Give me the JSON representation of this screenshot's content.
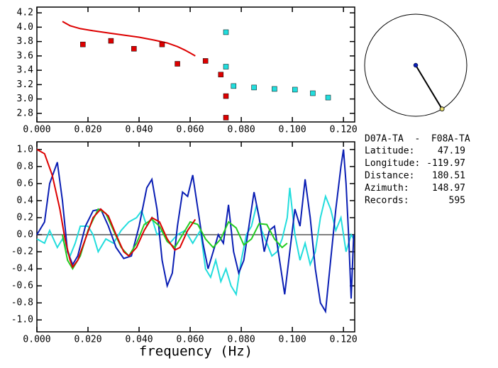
{
  "chart_data": [
    {
      "type": "scatter",
      "xlim": [
        0,
        0.1244
      ],
      "ylim": [
        2.68,
        4.28
      ],
      "xticks": [
        {
          "value": 0,
          "label": "0.000"
        },
        {
          "value": 0.02,
          "label": "0.020"
        },
        {
          "value": 0.04,
          "label": "0.040"
        },
        {
          "value": 0.06,
          "label": "0.060"
        },
        {
          "value": 0.08,
          "label": "0.080"
        },
        {
          "value": 0.1,
          "label": "0.100"
        },
        {
          "value": 0.12,
          "label": "0.120"
        }
      ],
      "yticks": [
        {
          "value": 2.8,
          "label": "2.8"
        },
        {
          "value": 3,
          "label": "3.0"
        },
        {
          "value": 3.2,
          "label": "3.2"
        },
        {
          "value": 3.4,
          "label": "3.4"
        },
        {
          "value": 3.6,
          "label": "3.6"
        },
        {
          "value": 3.8,
          "label": "3.8"
        },
        {
          "value": 4,
          "label": "4.0"
        },
        {
          "value": 4.2,
          "label": "4.2"
        }
      ],
      "series": [
        {
          "type": "line",
          "color": "#dd0000",
          "x": [
            0.01,
            0.013,
            0.017,
            0.022,
            0.028,
            0.034,
            0.04,
            0.046,
            0.051,
            0.055,
            0.058,
            0.06,
            0.062
          ],
          "values": [
            4.08,
            4.02,
            3.98,
            3.95,
            3.92,
            3.89,
            3.86,
            3.82,
            3.78,
            3.73,
            3.68,
            3.64,
            3.6
          ]
        },
        {
          "type": "scatter",
          "color": "#dd0000",
          "x": [
            0.018,
            0.029,
            0.038,
            0.049,
            0.055,
            0.066,
            0.072,
            0.074,
            0.074
          ],
          "values": [
            3.76,
            3.81,
            3.7,
            3.76,
            3.49,
            3.53,
            3.34,
            3.04,
            2.74
          ]
        },
        {
          "type": "scatter",
          "color": "#22dddd",
          "x": [
            0.074,
            0.074,
            0.077,
            0.085,
            0.093,
            0.101,
            0.108,
            0.114
          ],
          "values": [
            3.93,
            3.45,
            3.18,
            3.16,
            3.14,
            3.13,
            3.08,
            3.02
          ]
        }
      ]
    },
    {
      "type": "line",
      "xlabel": "frequency (Hz)",
      "xlim": [
        0,
        0.1244
      ],
      "ylim": [
        -1.14,
        1.09
      ],
      "hline": 0,
      "xticks": [
        {
          "value": 0,
          "label": "0.000"
        },
        {
          "value": 0.02,
          "label": "0.020"
        },
        {
          "value": 0.04,
          "label": "0.040"
        },
        {
          "value": 0.06,
          "label": "0.060"
        },
        {
          "value": 0.08,
          "label": "0.080"
        },
        {
          "value": 0.1,
          "label": "0.100"
        },
        {
          "value": 0.12,
          "label": "0.120"
        }
      ],
      "yticks": [
        {
          "value": -1,
          "label": "-1.0"
        },
        {
          "value": -0.8,
          "label": "-0.8"
        },
        {
          "value": -0.6,
          "label": "-0.6"
        },
        {
          "value": -0.4,
          "label": "-0.4"
        },
        {
          "value": -0.2,
          "label": "-0.2"
        },
        {
          "value": 0,
          "label": "0.0"
        },
        {
          "value": 0.2,
          "label": "0.2"
        },
        {
          "value": 0.4,
          "label": "0.4"
        },
        {
          "value": 0.6,
          "label": "0.6"
        },
        {
          "value": 0.8,
          "label": "0.8"
        },
        {
          "value": 1,
          "label": "1.0"
        }
      ],
      "series": [
        {
          "type": "line",
          "color": "#22dddd",
          "x": [
            0,
            0.003,
            0.005,
            0.008,
            0.01,
            0.013,
            0.015,
            0.017,
            0.02,
            0.022,
            0.024,
            0.027,
            0.03,
            0.033,
            0.036,
            0.039,
            0.041,
            0.043,
            0.045,
            0.047,
            0.049,
            0.052,
            0.055,
            0.058,
            0.061,
            0.064,
            0.066,
            0.068,
            0.07,
            0.072,
            0.074,
            0.076,
            0.078,
            0.08,
            0.082,
            0.084,
            0.086,
            0.088,
            0.09,
            0.092,
            0.094,
            0.096,
            0.098,
            0.099,
            0.101,
            0.103,
            0.105,
            0.107,
            0.109,
            0.111,
            0.113,
            0.115,
            0.117,
            0.119,
            0.121,
            0.123,
            0.124
          ],
          "values": [
            -0.05,
            -0.1,
            0.05,
            -0.15,
            -0.05,
            -0.25,
            -0.1,
            0.1,
            0.1,
            0.0,
            -0.2,
            -0.05,
            -0.1,
            0.05,
            0.15,
            0.2,
            0.28,
            0.1,
            0.2,
            0.0,
            0.05,
            -0.1,
            0.0,
            0.05,
            -0.1,
            0.05,
            -0.4,
            -0.5,
            -0.3,
            -0.55,
            -0.4,
            -0.6,
            -0.7,
            -0.3,
            0.0,
            0.1,
            0.35,
            0.05,
            -0.1,
            -0.25,
            -0.2,
            -0.05,
            0.2,
            0.55,
            0.0,
            -0.3,
            -0.1,
            -0.35,
            -0.2,
            0.2,
            0.45,
            0.3,
            0.05,
            0.2,
            -0.2,
            0.0,
            -0.05
          ]
        },
        {
          "type": "line",
          "color": "#0a1eb4",
          "x": [
            0,
            0.003,
            0.005,
            0.008,
            0.01,
            0.012,
            0.014,
            0.016,
            0.019,
            0.022,
            0.025,
            0.028,
            0.031,
            0.034,
            0.037,
            0.04,
            0.043,
            0.045,
            0.047,
            0.049,
            0.051,
            0.053,
            0.055,
            0.057,
            0.059,
            0.061,
            0.063,
            0.065,
            0.067,
            0.069,
            0.071,
            0.073,
            0.075,
            0.077,
            0.079,
            0.081,
            0.083,
            0.085,
            0.087,
            0.089,
            0.091,
            0.093,
            0.095,
            0.097,
            0.099,
            0.101,
            0.103,
            0.105,
            0.107,
            0.109,
            0.111,
            0.113,
            0.115,
            0.117,
            0.119,
            0.12,
            0.121,
            0.122,
            0.123,
            0.124
          ],
          "values": [
            0.0,
            0.15,
            0.6,
            0.85,
            0.4,
            -0.2,
            -0.35,
            -0.25,
            0.1,
            0.28,
            0.3,
            0.1,
            -0.15,
            -0.28,
            -0.25,
            0.1,
            0.55,
            0.65,
            0.3,
            -0.3,
            -0.6,
            -0.45,
            0.1,
            0.5,
            0.45,
            0.7,
            0.3,
            -0.1,
            -0.4,
            -0.2,
            0.0,
            -0.1,
            0.35,
            -0.2,
            -0.45,
            -0.3,
            0.1,
            0.5,
            0.2,
            -0.2,
            0.05,
            0.1,
            -0.3,
            -0.7,
            -0.2,
            0.3,
            0.1,
            0.65,
            0.2,
            -0.4,
            -0.8,
            -0.9,
            -0.3,
            0.3,
            0.8,
            1.0,
            0.6,
            0.0,
            -0.75,
            0.0
          ]
        },
        {
          "type": "line",
          "color": "#22cc22",
          "x": [
            0.01,
            0.012,
            0.014,
            0.017,
            0.02,
            0.024,
            0.027,
            0.03,
            0.033,
            0.036,
            0.039,
            0.042,
            0.045,
            0.048,
            0.051,
            0.054,
            0.057,
            0.06,
            0.063,
            0.066,
            0.069,
            0.072,
            0.075,
            0.078,
            0.081,
            0.084,
            0.087,
            0.09,
            0.093,
            0.096,
            0.098
          ],
          "values": [
            0.0,
            -0.3,
            -0.4,
            -0.25,
            0.05,
            0.3,
            0.25,
            0.05,
            -0.15,
            -0.25,
            -0.1,
            0.12,
            0.18,
            0.1,
            -0.08,
            -0.15,
            0.0,
            0.15,
            0.12,
            -0.05,
            -0.15,
            -0.05,
            0.15,
            0.08,
            -0.12,
            -0.05,
            0.13,
            0.12,
            -0.05,
            -0.15,
            -0.1
          ]
        },
        {
          "type": "line",
          "color": "#dd0000",
          "x": [
            0,
            0.003,
            0.006,
            0.009,
            0.011,
            0.013,
            0.014,
            0.016,
            0.019,
            0.022,
            0.025,
            0.028,
            0.031,
            0.034,
            0.036,
            0.039,
            0.042,
            0.045,
            0.048,
            0.051,
            0.054,
            0.056,
            0.059,
            0.062
          ],
          "values": [
            1.0,
            0.95,
            0.7,
            0.3,
            -0.05,
            -0.3,
            -0.38,
            -0.3,
            -0.05,
            0.2,
            0.3,
            0.22,
            0.0,
            -0.2,
            -0.25,
            -0.15,
            0.05,
            0.2,
            0.15,
            -0.05,
            -0.18,
            -0.15,
            0.05,
            0.18
          ]
        }
      ]
    }
  ],
  "info": {
    "title": "D07A-TA  -  F08A-TA",
    "rows": [
      {
        "label": "Latitude:",
        "value": 47.19
      },
      {
        "label": "Longitude:",
        "value": -119.97
      },
      {
        "label": "Distance:",
        "value": 180.51
      },
      {
        "label": "Azimuth:",
        "value": 148.97
      },
      {
        "label": "Records:",
        "value": 595
      }
    ]
  }
}
